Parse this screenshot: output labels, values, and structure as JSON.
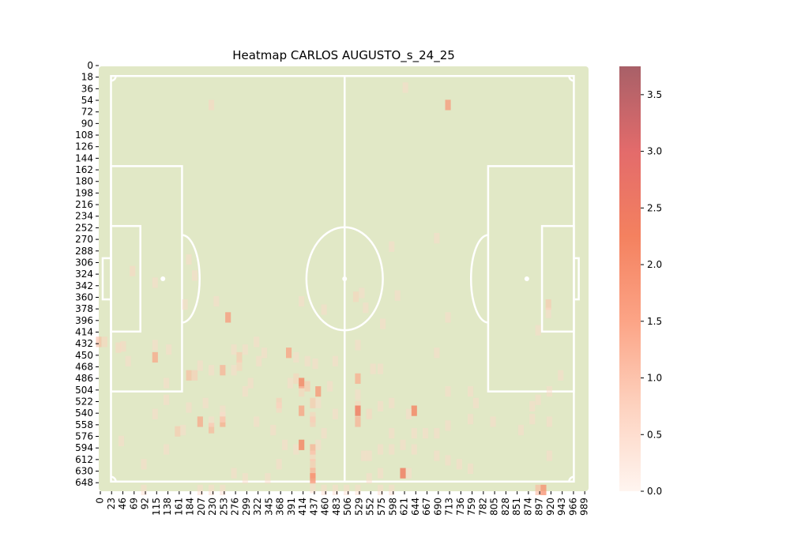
{
  "chart_data": {
    "type": "heatmap",
    "title": "Heatmap CARLOS AUGUSTO_s_24_25",
    "xlabel": "",
    "ylabel": "",
    "x_ticks": [
      "0",
      "23",
      "46",
      "69",
      "92",
      "115",
      "138",
      "161",
      "184",
      "207",
      "230",
      "253",
      "276",
      "299",
      "322",
      "345",
      "368",
      "391",
      "414",
      "437",
      "460",
      "483",
      "506",
      "529",
      "552",
      "575",
      "598",
      "621",
      "644",
      "667",
      "690",
      "713",
      "736",
      "759",
      "782",
      "805",
      "828",
      "851",
      "874",
      "897",
      "920",
      "943",
      "966",
      "989"
    ],
    "y_ticks": [
      "0",
      "18",
      "36",
      "54",
      "72",
      "90",
      "108",
      "126",
      "144",
      "162",
      "180",
      "198",
      "216",
      "234",
      "252",
      "270",
      "288",
      "306",
      "324",
      "342",
      "360",
      "378",
      "396",
      "414",
      "432",
      "450",
      "468",
      "486",
      "504",
      "522",
      "540",
      "558",
      "576",
      "594",
      "612",
      "630",
      "648"
    ],
    "xlim": [
      0,
      1000
    ],
    "ylim": [
      0,
      660
    ],
    "colorbar": {
      "min": 0,
      "max": 3.75,
      "ticks": [
        "0.0",
        "0.5",
        "1.0",
        "1.5",
        "2.0",
        "2.5",
        "3.0",
        "3.5"
      ],
      "colors": [
        "#fff5f0",
        "#fdd2bf",
        "#fca486",
        "#f4815f",
        "#e36b6b",
        "#a86068"
      ]
    },
    "pitch": {
      "grass_color": "#e1e8c6",
      "line_color": "#ffffff"
    },
    "cells": [
      {
        "x": 230,
        "y": 60,
        "v": 0.7
      },
      {
        "x": 626,
        "y": 33,
        "v": 0.6
      },
      {
        "x": 713,
        "y": 60,
        "v": 1.8
      },
      {
        "x": 69,
        "y": 318,
        "v": 0.7
      },
      {
        "x": 115,
        "y": 336,
        "v": 0.6
      },
      {
        "x": 184,
        "y": 300,
        "v": 0.6
      },
      {
        "x": 196,
        "y": 325,
        "v": 0.6
      },
      {
        "x": 176,
        "y": 370,
        "v": 0.6
      },
      {
        "x": 240,
        "y": 365,
        "v": 0.6
      },
      {
        "x": 264,
        "y": 390,
        "v": 1.8
      },
      {
        "x": 414,
        "y": 365,
        "v": 0.6
      },
      {
        "x": 460,
        "y": 378,
        "v": 0.6
      },
      {
        "x": 525,
        "y": 358,
        "v": 0.8
      },
      {
        "x": 537,
        "y": 352,
        "v": 0.6
      },
      {
        "x": 545,
        "y": 375,
        "v": 0.6
      },
      {
        "x": 598,
        "y": 280,
        "v": 0.6
      },
      {
        "x": 690,
        "y": 267,
        "v": 0.6
      },
      {
        "x": 610,
        "y": 356,
        "v": 0.6
      },
      {
        "x": 580,
        "y": 400,
        "v": 0.6
      },
      {
        "x": 713,
        "y": 390,
        "v": 0.6
      },
      {
        "x": 918,
        "y": 370,
        "v": 1.0
      },
      {
        "x": 918,
        "y": 383,
        "v": 0.6
      },
      {
        "x": 897,
        "y": 410,
        "v": 0.6
      },
      {
        "x": 0,
        "y": 428,
        "v": 1.2
      },
      {
        "x": 12,
        "y": 428,
        "v": 0.8
      },
      {
        "x": 40,
        "y": 437,
        "v": 0.7
      },
      {
        "x": 50,
        "y": 435,
        "v": 0.7
      },
      {
        "x": 60,
        "y": 458,
        "v": 0.6
      },
      {
        "x": 115,
        "y": 433,
        "v": 0.6
      },
      {
        "x": 143,
        "y": 440,
        "v": 0.6
      },
      {
        "x": 115,
        "y": 452,
        "v": 1.6
      },
      {
        "x": 276,
        "y": 440,
        "v": 0.6
      },
      {
        "x": 299,
        "y": 440,
        "v": 0.6
      },
      {
        "x": 287,
        "y": 452,
        "v": 1.0
      },
      {
        "x": 287,
        "y": 465,
        "v": 0.8
      },
      {
        "x": 322,
        "y": 428,
        "v": 0.6
      },
      {
        "x": 338,
        "y": 445,
        "v": 0.6
      },
      {
        "x": 327,
        "y": 458,
        "v": 0.6
      },
      {
        "x": 388,
        "y": 445,
        "v": 1.7
      },
      {
        "x": 403,
        "y": 452,
        "v": 0.6
      },
      {
        "x": 426,
        "y": 458,
        "v": 0.6
      },
      {
        "x": 442,
        "y": 462,
        "v": 0.6
      },
      {
        "x": 483,
        "y": 458,
        "v": 0.6
      },
      {
        "x": 529,
        "y": 433,
        "v": 0.6
      },
      {
        "x": 690,
        "y": 445,
        "v": 0.6
      },
      {
        "x": 560,
        "y": 470,
        "v": 0.6
      },
      {
        "x": 575,
        "y": 470,
        "v": 0.6
      },
      {
        "x": 207,
        "y": 465,
        "v": 0.6
      },
      {
        "x": 230,
        "y": 472,
        "v": 0.6
      },
      {
        "x": 253,
        "y": 472,
        "v": 1.4
      },
      {
        "x": 276,
        "y": 472,
        "v": 0.6
      },
      {
        "x": 184,
        "y": 480,
        "v": 1.2
      },
      {
        "x": 196,
        "y": 480,
        "v": 0.9
      },
      {
        "x": 138,
        "y": 492,
        "v": 0.6
      },
      {
        "x": 310,
        "y": 492,
        "v": 0.6
      },
      {
        "x": 299,
        "y": 505,
        "v": 0.6
      },
      {
        "x": 391,
        "y": 492,
        "v": 0.6
      },
      {
        "x": 403,
        "y": 485,
        "v": 0.8
      },
      {
        "x": 414,
        "y": 492,
        "v": 2.2
      },
      {
        "x": 426,
        "y": 497,
        "v": 1.0
      },
      {
        "x": 414,
        "y": 505,
        "v": 0.8
      },
      {
        "x": 448,
        "y": 505,
        "v": 1.9
      },
      {
        "x": 472,
        "y": 497,
        "v": 0.6
      },
      {
        "x": 529,
        "y": 485,
        "v": 1.5
      },
      {
        "x": 529,
        "y": 510,
        "v": 0.6
      },
      {
        "x": 713,
        "y": 505,
        "v": 0.6
      },
      {
        "x": 759,
        "y": 505,
        "v": 0.6
      },
      {
        "x": 943,
        "y": 480,
        "v": 0.6
      },
      {
        "x": 920,
        "y": 505,
        "v": 0.6
      },
      {
        "x": 897,
        "y": 518,
        "v": 0.6
      },
      {
        "x": 885,
        "y": 528,
        "v": 0.6
      },
      {
        "x": 138,
        "y": 518,
        "v": 0.6
      },
      {
        "x": 184,
        "y": 530,
        "v": 0.6
      },
      {
        "x": 218,
        "y": 523,
        "v": 0.6
      },
      {
        "x": 253,
        "y": 535,
        "v": 0.6
      },
      {
        "x": 368,
        "y": 523,
        "v": 0.9
      },
      {
        "x": 368,
        "y": 530,
        "v": 0.7
      },
      {
        "x": 414,
        "y": 535,
        "v": 1.7
      },
      {
        "x": 437,
        "y": 523,
        "v": 1.0
      },
      {
        "x": 437,
        "y": 545,
        "v": 0.8
      },
      {
        "x": 448,
        "y": 523,
        "v": 0.6
      },
      {
        "x": 483,
        "y": 540,
        "v": 0.6
      },
      {
        "x": 529,
        "y": 528,
        "v": 0.8
      },
      {
        "x": 529,
        "y": 535,
        "v": 2.4
      },
      {
        "x": 552,
        "y": 540,
        "v": 0.7
      },
      {
        "x": 575,
        "y": 528,
        "v": 0.6
      },
      {
        "x": 598,
        "y": 523,
        "v": 0.6
      },
      {
        "x": 644,
        "y": 535,
        "v": 2.2
      },
      {
        "x": 633,
        "y": 540,
        "v": 0.6
      },
      {
        "x": 770,
        "y": 523,
        "v": 0.6
      },
      {
        "x": 759,
        "y": 548,
        "v": 0.6
      },
      {
        "x": 115,
        "y": 540,
        "v": 0.6
      },
      {
        "x": 207,
        "y": 552,
        "v": 1.6
      },
      {
        "x": 230,
        "y": 562,
        "v": 1.3
      },
      {
        "x": 253,
        "y": 552,
        "v": 1.5
      },
      {
        "x": 230,
        "y": 552,
        "v": 0.6
      },
      {
        "x": 253,
        "y": 545,
        "v": 0.6
      },
      {
        "x": 161,
        "y": 567,
        "v": 1.0
      },
      {
        "x": 172,
        "y": 565,
        "v": 0.6
      },
      {
        "x": 322,
        "y": 552,
        "v": 0.6
      },
      {
        "x": 356,
        "y": 565,
        "v": 0.6
      },
      {
        "x": 437,
        "y": 552,
        "v": 0.9
      },
      {
        "x": 460,
        "y": 570,
        "v": 0.6
      },
      {
        "x": 529,
        "y": 552,
        "v": 1.4
      },
      {
        "x": 598,
        "y": 570,
        "v": 0.6
      },
      {
        "x": 644,
        "y": 570,
        "v": 0.6
      },
      {
        "x": 667,
        "y": 570,
        "v": 0.6
      },
      {
        "x": 690,
        "y": 570,
        "v": 0.6
      },
      {
        "x": 713,
        "y": 558,
        "v": 0.6
      },
      {
        "x": 805,
        "y": 552,
        "v": 0.6
      },
      {
        "x": 862,
        "y": 565,
        "v": 0.6
      },
      {
        "x": 885,
        "y": 548,
        "v": 0.6
      },
      {
        "x": 920,
        "y": 552,
        "v": 0.6
      },
      {
        "x": 46,
        "y": 582,
        "v": 0.6
      },
      {
        "x": 138,
        "y": 595,
        "v": 0.6
      },
      {
        "x": 380,
        "y": 588,
        "v": 0.6
      },
      {
        "x": 403,
        "y": 595,
        "v": 0.6
      },
      {
        "x": 414,
        "y": 588,
        "v": 2.2
      },
      {
        "x": 437,
        "y": 595,
        "v": 1.4
      },
      {
        "x": 448,
        "y": 588,
        "v": 0.6
      },
      {
        "x": 552,
        "y": 605,
        "v": 0.6
      },
      {
        "x": 575,
        "y": 595,
        "v": 0.6
      },
      {
        "x": 598,
        "y": 595,
        "v": 0.6
      },
      {
        "x": 621,
        "y": 588,
        "v": 0.6
      },
      {
        "x": 644,
        "y": 595,
        "v": 0.6
      },
      {
        "x": 690,
        "y": 605,
        "v": 0.6
      },
      {
        "x": 920,
        "y": 605,
        "v": 0.6
      },
      {
        "x": 437,
        "y": 605,
        "v": 0.8
      },
      {
        "x": 437,
        "y": 618,
        "v": 1.0
      },
      {
        "x": 437,
        "y": 632,
        "v": 1.4
      },
      {
        "x": 437,
        "y": 640,
        "v": 2.0
      },
      {
        "x": 92,
        "y": 618,
        "v": 0.6
      },
      {
        "x": 276,
        "y": 632,
        "v": 0.6
      },
      {
        "x": 299,
        "y": 640,
        "v": 0.6
      },
      {
        "x": 345,
        "y": 640,
        "v": 0.6
      },
      {
        "x": 368,
        "y": 618,
        "v": 0.6
      },
      {
        "x": 541,
        "y": 605,
        "v": 0.6
      },
      {
        "x": 575,
        "y": 632,
        "v": 0.6
      },
      {
        "x": 552,
        "y": 640,
        "v": 0.6
      },
      {
        "x": 621,
        "y": 632,
        "v": 2.4
      },
      {
        "x": 633,
        "y": 632,
        "v": 0.6
      },
      {
        "x": 713,
        "y": 612,
        "v": 0.6
      },
      {
        "x": 736,
        "y": 618,
        "v": 0.6
      },
      {
        "x": 759,
        "y": 625,
        "v": 0.6
      },
      {
        "x": 897,
        "y": 658,
        "v": 1.2
      },
      {
        "x": 908,
        "y": 658,
        "v": 2.0
      },
      {
        "x": 92,
        "y": 658,
        "v": 0.6
      },
      {
        "x": 207,
        "y": 658,
        "v": 0.6
      },
      {
        "x": 230,
        "y": 658,
        "v": 0.6
      },
      {
        "x": 253,
        "y": 658,
        "v": 0.6
      },
      {
        "x": 437,
        "y": 655,
        "v": 0.6
      },
      {
        "x": 460,
        "y": 658,
        "v": 0.6
      },
      {
        "x": 483,
        "y": 658,
        "v": 0.6
      },
      {
        "x": 506,
        "y": 658,
        "v": 0.6
      },
      {
        "x": 529,
        "y": 658,
        "v": 0.6
      },
      {
        "x": 575,
        "y": 658,
        "v": 0.6
      },
      {
        "x": 598,
        "y": 658,
        "v": 0.6
      }
    ]
  }
}
